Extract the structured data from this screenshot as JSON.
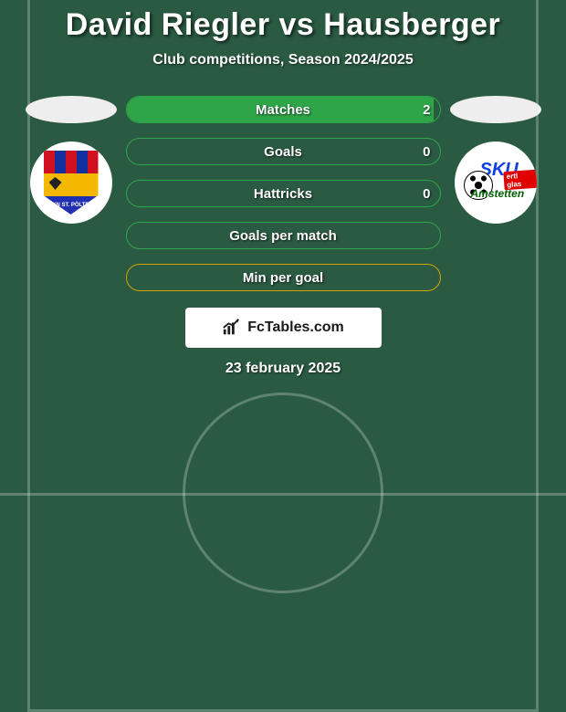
{
  "title": "David Riegler vs Hausberger",
  "subtitle": "Club competitions, Season 2024/2025",
  "date": "23 february 2025",
  "footer_brand": "FcTables.com",
  "colors": {
    "background": "#2a5a42",
    "bar_border_green": "#2fa54a",
    "bar_fill_green": "#2fa54a",
    "bar_border_amber": "#d6a400",
    "text": "#ffffff"
  },
  "left_club": {
    "name": "SKN St. Pölten",
    "shield_stripe_colors": [
      "#d01020",
      "#1030a0",
      "#d01020",
      "#1030a0",
      "#d01020"
    ],
    "band_text": "SKN ST. PÖLTEN"
  },
  "right_club": {
    "name": "SKU Amstetten",
    "line1": "SKU",
    "tag": "ertl glas",
    "line2": "Amstetten"
  },
  "stats": [
    {
      "label": "Matches",
      "value": "2",
      "fill_pct": 98,
      "variant": "green",
      "show_value": true
    },
    {
      "label": "Goals",
      "value": "0",
      "fill_pct": 0,
      "variant": "green",
      "show_value": true
    },
    {
      "label": "Hattricks",
      "value": "0",
      "fill_pct": 0,
      "variant": "green",
      "show_value": true
    },
    {
      "label": "Goals per match",
      "value": "",
      "fill_pct": 0,
      "variant": "green",
      "show_value": false
    },
    {
      "label": "Min per goal",
      "value": "",
      "fill_pct": 0,
      "variant": "amber",
      "show_value": false
    }
  ]
}
